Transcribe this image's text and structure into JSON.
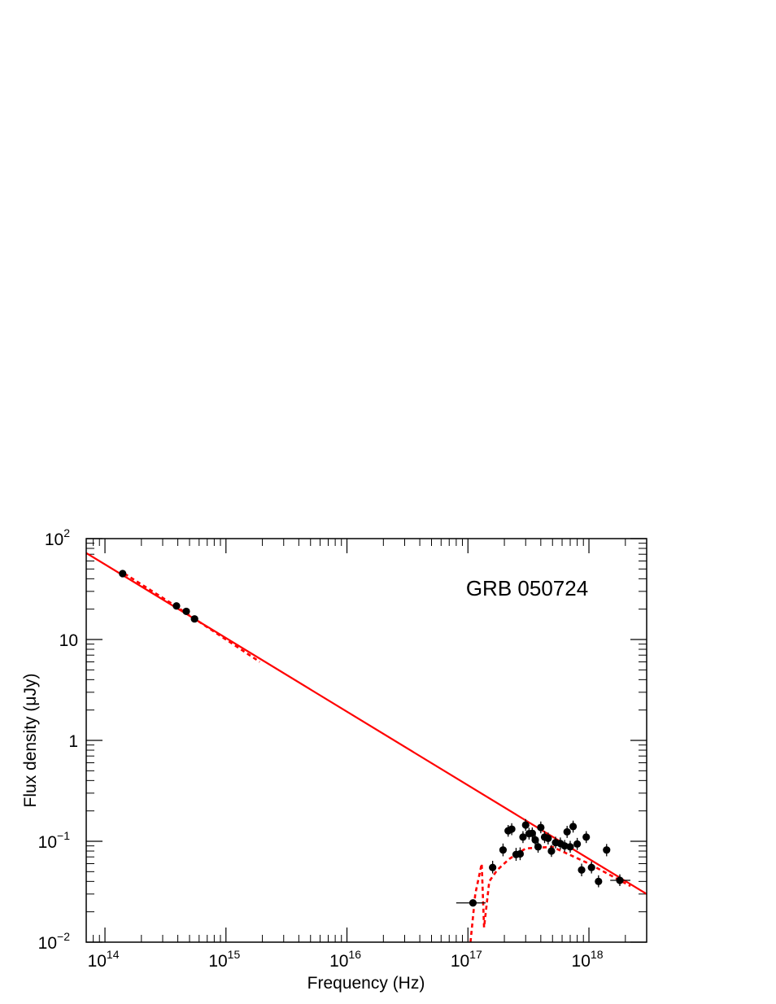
{
  "chart_data": {
    "type": "scatter",
    "title": "",
    "annotation": "GRB 050724",
    "xlabel": "Frequency (Hz)",
    "ylabel": "Flux density (μJy)",
    "x_scale": "log",
    "y_scale": "log",
    "xlim": [
      70000000000000.0,
      3e+18
    ],
    "ylim": [
      0.01,
      100
    ],
    "x_ticks": [
      {
        "value": 100000000000000.0,
        "base": "10",
        "exp": "14"
      },
      {
        "value": 1000000000000000.0,
        "base": "10",
        "exp": "15"
      },
      {
        "value": 1e+16,
        "base": "10",
        "exp": "16"
      },
      {
        "value": 1e+17,
        "base": "10",
        "exp": "17"
      },
      {
        "value": 1e+18,
        "base": "10",
        "exp": "18"
      }
    ],
    "y_ticks": [
      {
        "value": 0.01,
        "base": "10",
        "exp": "−2"
      },
      {
        "value": 0.1,
        "base": "10",
        "exp": "−1"
      },
      {
        "value": 1,
        "base": "1",
        "exp": ""
      },
      {
        "value": 10,
        "base": "10",
        "exp": ""
      },
      {
        "value": 100,
        "base": "10",
        "exp": "2"
      }
    ],
    "grid": false,
    "colors": {
      "points": "#000000",
      "model": "#ff0000"
    },
    "series": [
      {
        "kind": "points",
        "points": [
          {
            "x": 140000000000000.0,
            "y": 45.0
          },
          {
            "x": 390000000000000.0,
            "y": 21.5
          },
          {
            "x": 470000000000000.0,
            "y": 19.0
          },
          {
            "x": 550000000000000.0,
            "y": 16.0
          },
          {
            "x": 1.1e+17,
            "y": 0.0245,
            "xlo": 8e+16,
            "xhi": 1.4e+17
          },
          {
            "x": 1.6e+17,
            "y": 0.055,
            "ylo": 0.048,
            "yhi": 0.064
          },
          {
            "x": 1.95e+17,
            "y": 0.082,
            "ylo": 0.071,
            "yhi": 0.095
          },
          {
            "x": 2.15e+17,
            "y": 0.127,
            "ylo": 0.111,
            "yhi": 0.145
          },
          {
            "x": 2.3e+17,
            "y": 0.132,
            "ylo": 0.115,
            "yhi": 0.151
          },
          {
            "x": 2.5e+17,
            "y": 0.074,
            "ylo": 0.064,
            "yhi": 0.086
          },
          {
            "x": 2.7e+17,
            "y": 0.075,
            "ylo": 0.065,
            "yhi": 0.087
          },
          {
            "x": 2.85e+17,
            "y": 0.11,
            "ylo": 0.096,
            "yhi": 0.126
          },
          {
            "x": 3e+17,
            "y": 0.145,
            "ylo": 0.127,
            "yhi": 0.166
          },
          {
            "x": 3.2e+17,
            "y": 0.119,
            "ylo": 0.104,
            "yhi": 0.136
          },
          {
            "x": 3.4e+17,
            "y": 0.12,
            "ylo": 0.105,
            "yhi": 0.137
          },
          {
            "x": 3.6e+17,
            "y": 0.103,
            "ylo": 0.09,
            "yhi": 0.118
          },
          {
            "x": 3.8e+17,
            "y": 0.088,
            "ylo": 0.077,
            "yhi": 0.101
          },
          {
            "x": 4e+17,
            "y": 0.137,
            "ylo": 0.12,
            "yhi": 0.157
          },
          {
            "x": 4.3e+17,
            "y": 0.11,
            "ylo": 0.096,
            "yhi": 0.126
          },
          {
            "x": 4.6e+17,
            "y": 0.107,
            "ylo": 0.093,
            "yhi": 0.122
          },
          {
            "x": 4.9e+17,
            "y": 0.08,
            "ylo": 0.07,
            "yhi": 0.092
          },
          {
            "x": 5.3e+17,
            "y": 0.097,
            "ylo": 0.085,
            "yhi": 0.111
          },
          {
            "x": 5.8e+17,
            "y": 0.095,
            "ylo": 0.083,
            "yhi": 0.109
          },
          {
            "x": 6.3e+17,
            "y": 0.09,
            "ylo": 0.079,
            "yhi": 0.103
          },
          {
            "x": 6.6e+17,
            "y": 0.124,
            "ylo": 0.108,
            "yhi": 0.142
          },
          {
            "x": 7e+17,
            "y": 0.088,
            "ylo": 0.077,
            "yhi": 0.101
          },
          {
            "x": 7.4e+17,
            "y": 0.14,
            "ylo": 0.122,
            "yhi": 0.16
          },
          {
            "x": 8e+17,
            "y": 0.094,
            "ylo": 0.082,
            "yhi": 0.108
          },
          {
            "x": 8.7e+17,
            "y": 0.052,
            "ylo": 0.045,
            "yhi": 0.06
          },
          {
            "x": 9.5e+17,
            "y": 0.11,
            "ylo": 0.096,
            "yhi": 0.126
          },
          {
            "x": 1.05e+18,
            "y": 0.055,
            "ylo": 0.048,
            "yhi": 0.063
          },
          {
            "x": 1.2e+18,
            "y": 0.04,
            "ylo": 0.035,
            "yhi": 0.046
          },
          {
            "x": 1.4e+18,
            "y": 0.082,
            "ylo": 0.071,
            "yhi": 0.094
          },
          {
            "x": 1.8e+18,
            "y": 0.041,
            "xlo": 1.5e+18,
            "xhi": 2.2e+18,
            "ylo": 0.036,
            "yhi": 0.047
          }
        ]
      },
      {
        "kind": "model-solid",
        "points": [
          {
            "x": 70000000000000.0,
            "y": 72.0
          },
          {
            "x": 3e+18,
            "y": 0.03
          }
        ]
      },
      {
        "kind": "model-dashed-optical",
        "points": [
          {
            "x": 145000000000000.0,
            "y": 45.0
          },
          {
            "x": 350000000000000.0,
            "y": 23.0
          },
          {
            "x": 600000000000000.0,
            "y": 15.0
          },
          {
            "x": 1000000000000000.0,
            "y": 10.0
          },
          {
            "x": 1900000000000000.0,
            "y": 6.0
          }
        ]
      },
      {
        "kind": "model-dashed-xray",
        "points": [
          {
            "x": 1.05e+17,
            "y": 0.01
          },
          {
            "x": 1.15e+17,
            "y": 0.03
          },
          {
            "x": 1.3e+17,
            "y": 0.06
          },
          {
            "x": 1.36e+17,
            "y": 0.014
          },
          {
            "x": 1.5e+17,
            "y": 0.04
          },
          {
            "x": 1.75e+17,
            "y": 0.052
          },
          {
            "x": 2.2e+17,
            "y": 0.067
          },
          {
            "x": 3e+17,
            "y": 0.085
          },
          {
            "x": 5e+17,
            "y": 0.088
          },
          {
            "x": 1e+18,
            "y": 0.06
          },
          {
            "x": 2.2e+18,
            "y": 0.036
          }
        ]
      }
    ]
  }
}
